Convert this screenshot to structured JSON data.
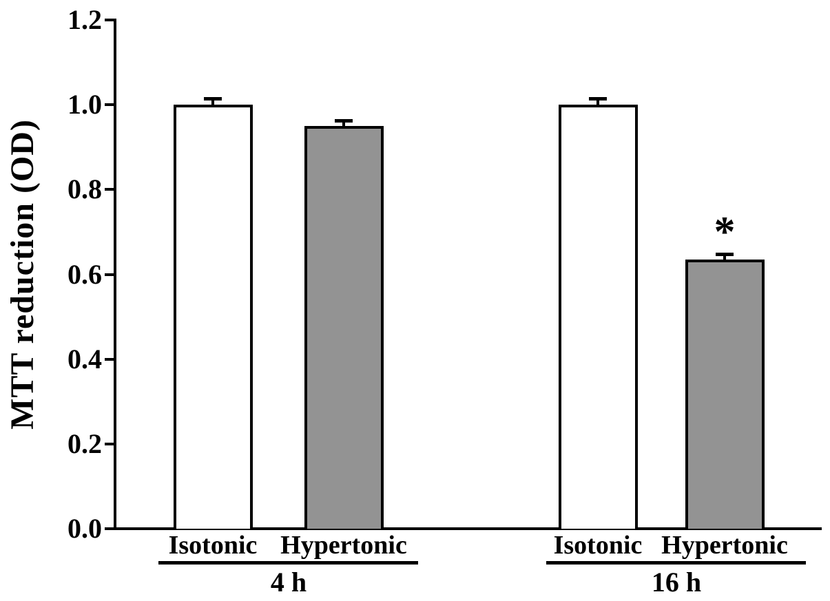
{
  "chart_data": {
    "type": "bar",
    "title": "",
    "ylabel": "MTT reduction (OD)",
    "xlabel": "",
    "ylim": [
      0.0,
      1.2
    ],
    "yticks": [
      "0.0",
      "0.2",
      "0.4",
      "0.6",
      "0.8",
      "1.0",
      "1.2"
    ],
    "grid": false,
    "legend": "none",
    "groups": [
      {
        "label": "4 h",
        "bars": [
          {
            "condition": "Isotonic",
            "value": 1.0,
            "error": 0.012,
            "fill": "#ffffff",
            "annotation": ""
          },
          {
            "condition": "Hypertonic",
            "value": 0.95,
            "error": 0.009,
            "fill": "#939393",
            "annotation": ""
          }
        ]
      },
      {
        "label": "16 h",
        "bars": [
          {
            "condition": "Isotonic",
            "value": 1.0,
            "error": 0.012,
            "fill": "#ffffff",
            "annotation": ""
          },
          {
            "condition": "Hypertonic",
            "value": 0.635,
            "error": 0.01,
            "fill": "#939393",
            "annotation": "*"
          }
        ]
      }
    ],
    "colors": {
      "axis": "#000000",
      "text": "#000000",
      "bar_fill_white": "#ffffff",
      "bar_fill_gray": "#939393",
      "bar_border": "#000000"
    }
  }
}
